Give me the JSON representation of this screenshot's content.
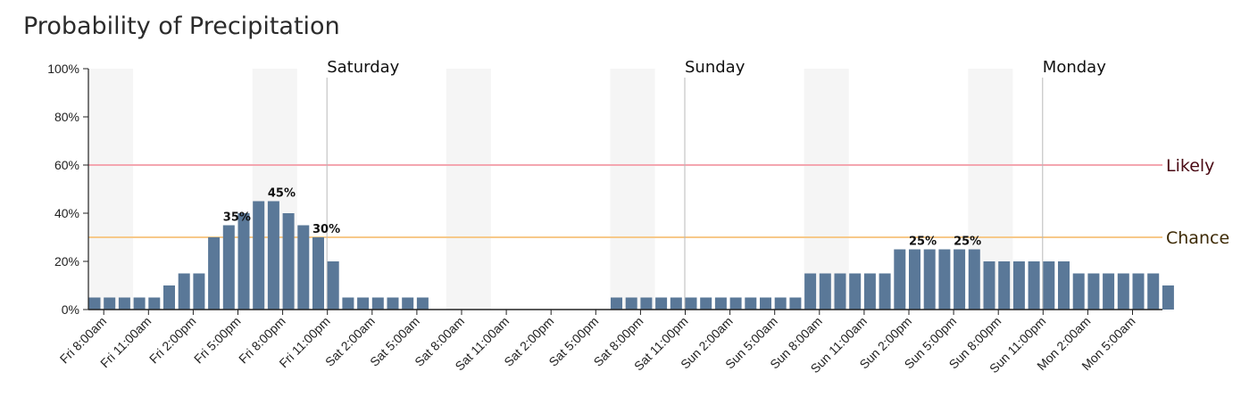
{
  "chart_data": {
    "type": "bar",
    "title": "Probability of Precipitation",
    "ylim": [
      0,
      100
    ],
    "y_ticks": [
      "0%",
      "20%",
      "40%",
      "60%",
      "80%",
      "100%"
    ],
    "y_tick_values": [
      0,
      20,
      40,
      60,
      80,
      100
    ],
    "x_tick_labels": [
      "Fri 8:00am",
      "Fri 11:00am",
      "Fri 2:00pm",
      "Fri 5:00pm",
      "Fri 8:00pm",
      "Fri 11:00pm",
      "Sat 2:00am",
      "Sat 5:00am",
      "Sat 8:00am",
      "Sat 11:00am",
      "Sat 2:00pm",
      "Sat 5:00pm",
      "Sat 8:00pm",
      "Sat 11:00pm",
      "Sun 2:00am",
      "Sun 5:00am",
      "Sun 8:00am",
      "Sun 11:00am",
      "Sun 2:00pm",
      "Sun 5:00pm",
      "Sun 8:00pm",
      "Sun 11:00pm",
      "Mon 2:00am",
      "Mon 5:00am"
    ],
    "values": [
      5,
      5,
      5,
      5,
      5,
      10,
      15,
      15,
      30,
      35,
      40,
      45,
      45,
      40,
      35,
      30,
      20,
      5,
      5,
      5,
      5,
      5,
      5,
      0,
      0,
      0,
      0,
      0,
      0,
      0,
      0,
      0,
      0,
      0,
      0,
      5,
      5,
      5,
      5,
      5,
      5,
      5,
      5,
      5,
      5,
      5,
      5,
      5,
      15,
      15,
      15,
      15,
      15,
      15,
      25,
      25,
      25,
      25,
      25,
      25,
      20,
      20,
      20,
      20,
      20,
      20,
      15,
      15,
      15,
      15,
      15,
      15,
      10
    ],
    "bar_labels": [
      {
        "index": 9,
        "text": "35%"
      },
      {
        "index": 12,
        "text": "45%"
      },
      {
        "index": 15,
        "text": "30%"
      },
      {
        "index": 55,
        "text": "25%"
      },
      {
        "index": 58,
        "text": "25%"
      }
    ],
    "day_markers": [
      {
        "hour_index": 16,
        "label": "Saturday"
      },
      {
        "hour_index": 40,
        "label": "Sunday"
      },
      {
        "hour_index": 64,
        "label": "Monday"
      }
    ],
    "night_bands": [
      [
        0,
        3
      ],
      [
        11,
        14
      ],
      [
        24,
        27
      ],
      [
        35,
        38
      ],
      [
        48,
        51
      ],
      [
        59,
        62
      ]
    ],
    "reference_lines": [
      {
        "value": 60,
        "label": "Likely",
        "color": "#f4a6b0",
        "text_color": "#4a0a14"
      },
      {
        "value": 30,
        "label": "Chance",
        "color": "#f7c98a",
        "text_color": "#3d2a05"
      }
    ],
    "bar_color": "#5a7898",
    "band_color": "#f5f5f5"
  }
}
